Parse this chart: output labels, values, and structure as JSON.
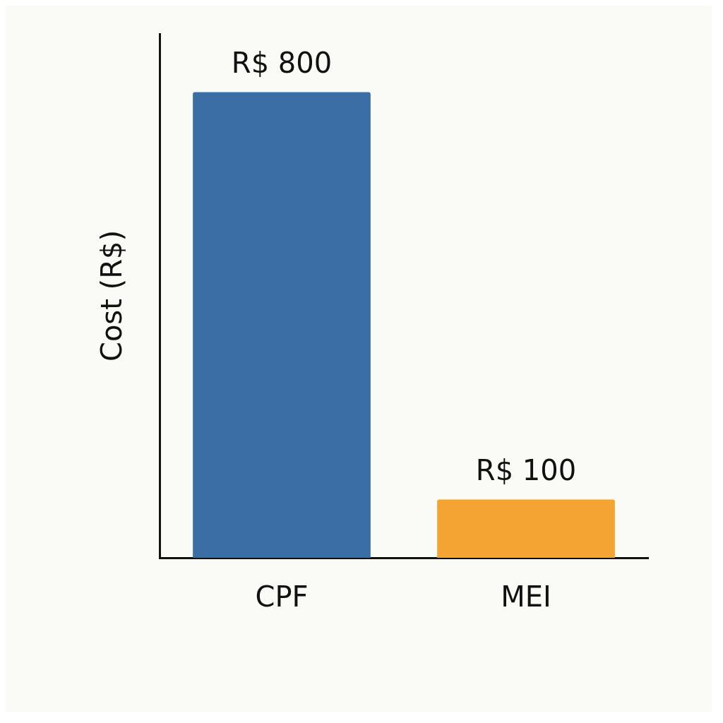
{
  "chart_data": {
    "type": "bar",
    "ylabel": "Cost (R$)",
    "categories": [
      "CPF",
      "MEI"
    ],
    "values": [
      800,
      100
    ],
    "colors": [
      "#3a6ea5",
      "#f4a433"
    ],
    "value_labels": [
      "R$ 800",
      "R$ 100"
    ],
    "tick_labels": "x",
    "grid": false,
    "legend": false
  }
}
